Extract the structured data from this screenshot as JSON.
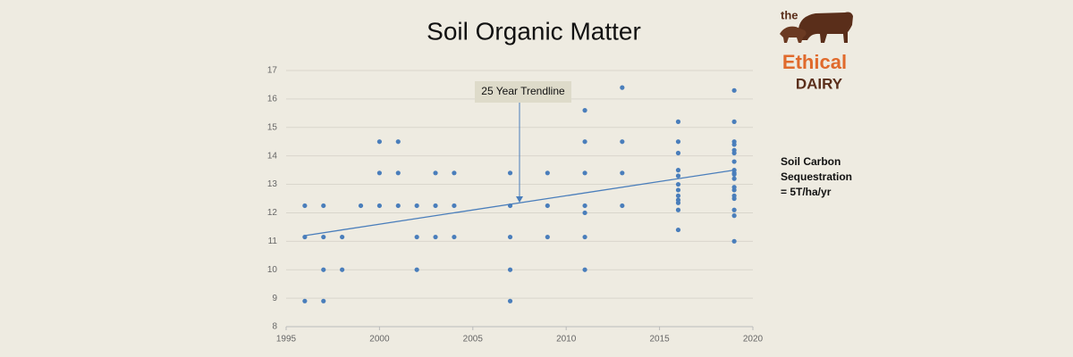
{
  "chart_data": {
    "type": "scatter",
    "title": "Soil Organic Matter",
    "x": [
      1996,
      1996,
      1996,
      1997,
      1997,
      1997,
      1997,
      1998,
      1998,
      1999,
      2000,
      2000,
      2000,
      2001,
      2001,
      2001,
      2002,
      2002,
      2002,
      2003,
      2003,
      2003,
      2004,
      2004,
      2004,
      2007,
      2007,
      2007,
      2007,
      2007,
      2009,
      2009,
      2009,
      2011,
      2011,
      2011,
      2011,
      2011,
      2011,
      2011,
      2013,
      2013,
      2013,
      2013,
      2016,
      2016,
      2016,
      2016,
      2016,
      2016,
      2016,
      2016,
      2016,
      2016,
      2016,
      2016,
      2019,
      2019,
      2019,
      2019,
      2019,
      2019,
      2019,
      2019,
      2019,
      2019,
      2019,
      2019,
      2019,
      2019,
      2019,
      2019,
      2019,
      2019
    ],
    "values": [
      12.25,
      11.15,
      8.9,
      12.25,
      11.15,
      10.0,
      8.9,
      11.15,
      10.0,
      12.25,
      14.5,
      13.4,
      12.25,
      14.5,
      13.4,
      12.25,
      12.25,
      11.15,
      10.0,
      13.4,
      12.25,
      11.15,
      13.4,
      12.25,
      11.15,
      13.4,
      12.25,
      11.15,
      10.0,
      8.9,
      13.4,
      12.25,
      11.15,
      15.6,
      14.5,
      13.4,
      12.25,
      12.0,
      11.15,
      10.0,
      16.4,
      14.5,
      13.4,
      12.25,
      15.2,
      14.5,
      14.1,
      13.5,
      13.3,
      13.0,
      12.8,
      12.6,
      12.45,
      12.35,
      12.1,
      11.4,
      16.3,
      15.2,
      14.5,
      14.4,
      14.2,
      14.1,
      13.8,
      13.5,
      13.4,
      13.35,
      13.2,
      12.9,
      12.8,
      12.6,
      12.5,
      12.1,
      11.9,
      11.0
    ],
    "color": "#4a7ebb",
    "trendline": {
      "x": [
        1996,
        2019
      ],
      "y": [
        11.2,
        13.5
      ],
      "color": "#4a7ebb"
    },
    "annotation": "25 Year Trendline",
    "xlim": [
      1995,
      2020
    ],
    "xticks": [
      1995,
      2000,
      2005,
      2010,
      2015,
      2020
    ],
    "ylim": [
      8,
      17
    ],
    "yticks": [
      8,
      9,
      10,
      11,
      12,
      13,
      14,
      15,
      16,
      17
    ],
    "grid": true
  },
  "side_note": [
    "Soil Carbon",
    "Sequestration",
    "= 5T/ha/yr"
  ],
  "logo": {
    "top": "the",
    "middle": "Ethical",
    "bottom": "DAIRY"
  }
}
